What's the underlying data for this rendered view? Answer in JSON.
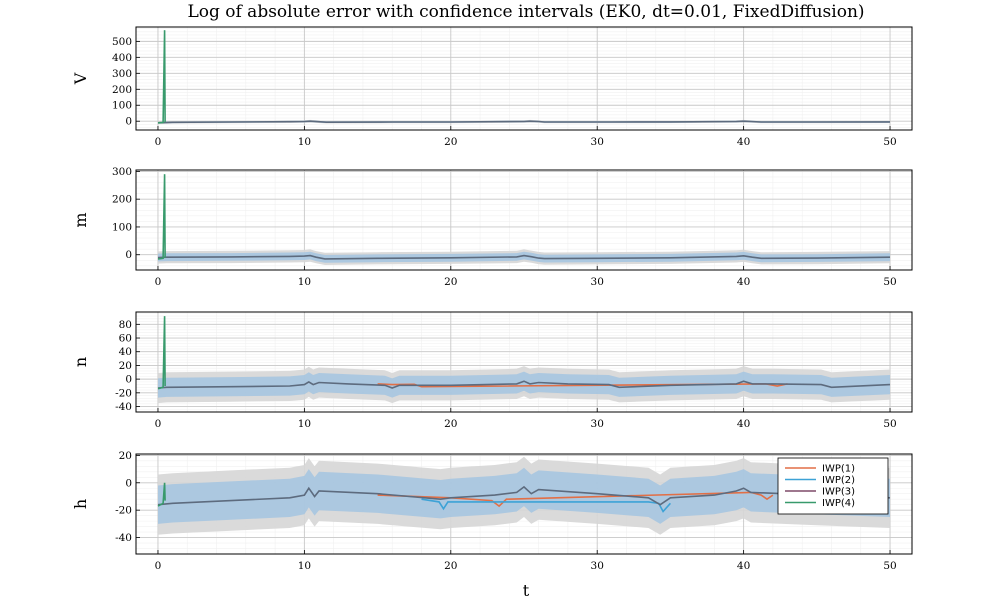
{
  "chart_data": {
    "type": "line",
    "title": "Log of absolute error with confidence intervals (EK0, dt=0.01, FixedDiffusion)",
    "xlabel": "t",
    "xlim": [
      -1.5,
      51.5
    ],
    "xticks": [
      0,
      10,
      20,
      30,
      40,
      50
    ],
    "grid": true,
    "legend": {
      "placement": "bottom-right of last panel",
      "entries": [
        "IWP(1)",
        "IWP(2)",
        "IWP(3)",
        "IWP(4)"
      ],
      "colors": [
        "#e26f46",
        "#3da2d6",
        "#7e4a68",
        "#389a6c"
      ]
    },
    "colors": {
      "band_outer": "#d6d6d6",
      "band_inner": "#9cc2e2",
      "main_line": "#5d6b7e"
    },
    "panels": [
      {
        "ylabel": "V",
        "ylim": [
          -55,
          590
        ],
        "yticks": [
          0,
          100,
          200,
          300,
          400,
          500
        ],
        "spike": {
          "t": 0.45,
          "peak": 570,
          "start": -10
        },
        "series": [
          {
            "name": "IWP(3)",
            "x": [
              0,
              1,
              5,
              9,
              10,
              10.4,
              10.7,
              11.5,
              16,
              20,
              25,
              25.4,
              26,
              26.4,
              31,
              35,
              39.5,
              40,
              40.5,
              41.2,
              45,
              50
            ],
            "y": [
              -10,
              -7,
              -5,
              -3,
              -2,
              0,
              -1,
              -6,
              -5,
              -5,
              -2,
              0,
              -2,
              -5,
              -5,
              -4,
              -2,
              0,
              -2,
              -5,
              -5,
              -4
            ]
          }
        ],
        "band_half_outer": 8,
        "band_half_inner": 5
      },
      {
        "ylabel": "m",
        "ylim": [
          -55,
          305
        ],
        "yticks": [
          0,
          100,
          200,
          300
        ],
        "spike": {
          "t": 0.45,
          "peak": 290,
          "start": -15
        },
        "series": [
          {
            "name": "IWP(3)",
            "x": [
              0,
              0.6,
              5,
              9,
              10,
              10.4,
              10.8,
              11.4,
              15,
              20,
              24.5,
              25,
              25.5,
              26,
              26.4,
              30,
              35,
              39.5,
              40,
              40.6,
              41.2,
              45,
              50
            ],
            "y": [
              -10,
              -9,
              -8,
              -6,
              -5,
              -3,
              -9,
              -15,
              -13,
              -11,
              -8,
              -3,
              -7,
              -12,
              -14,
              -13,
              -11,
              -6,
              -4,
              -9,
              -13,
              -12,
              -9
            ]
          }
        ],
        "band_half_outer": 22,
        "band_half_inner": 14
      },
      {
        "ylabel": "n",
        "ylim": [
          -48,
          98
        ],
        "yticks": [
          -40,
          -20,
          0,
          20,
          40,
          60,
          80
        ],
        "spike": {
          "t": 0.45,
          "peak": 92,
          "start": -14
        },
        "series": [
          {
            "name": "IWP(1)",
            "x": [
              15,
              16,
              17.5,
              18,
              41.5,
              42.3,
              43
            ],
            "y": [
              -7,
              -8,
              -7.5,
              -11,
              -7,
              -10,
              -7
            ]
          },
          {
            "name": "IWP(3)",
            "x": [
              0,
              0.6,
              5,
              9,
              10,
              10.3,
              10.6,
              11,
              13,
              15.5,
              16,
              16.5,
              20,
              24.5,
              25,
              25.4,
              26,
              28,
              30.8,
              31.5,
              35,
              39.5,
              40,
              40.6,
              42,
              45.3,
              46,
              50
            ],
            "y": [
              -13,
              -12,
              -11,
              -10,
              -8,
              -4,
              -8,
              -5,
              -7,
              -9,
              -13,
              -9,
              -9,
              -7,
              -3,
              -7,
              -5,
              -7,
              -8,
              -12,
              -9,
              -7,
              -3,
              -7,
              -7,
              -8,
              -12,
              -8
            ]
          }
        ],
        "band_half_outer": 22,
        "band_half_inner": 14
      },
      {
        "ylabel": "h",
        "ylim": [
          -52,
          21
        ],
        "yticks": [
          -40,
          -20,
          0,
          20
        ],
        "spike": {
          "t": 0.45,
          "peak": 0,
          "start": -17
        },
        "series": [
          {
            "name": "IWP(1)",
            "x": [
              15,
              20,
              22.8,
              23.3,
              23.8,
              40.5,
              41.2,
              41.6,
              42
            ],
            "y": [
              -9,
              -11,
              -13,
              -17,
              -12,
              -7,
              -9,
              -12,
              -9
            ]
          },
          {
            "name": "IWP(2)",
            "x": [
              18,
              19.2,
              19.5,
              19.8,
              33.5,
              34.2,
              34.5,
              35
            ],
            "y": [
              -12,
              -14,
              -19,
              -14,
              -14,
              -15,
              -21,
              -15
            ]
          },
          {
            "name": "IWP(3)",
            "x": [
              0,
              1,
              5,
              9,
              10,
              10.3,
              10.7,
              11,
              15,
              19.3,
              20,
              23,
              24.5,
              25,
              25.5,
              26,
              30,
              33.5,
              34.3,
              35,
              38,
              39.5,
              40,
              40.5,
              45,
              50
            ],
            "y": [
              -16,
              -15,
              -13,
              -11,
              -9,
              -4,
              -10,
              -6,
              -8,
              -12,
              -11,
              -9,
              -7,
              -3,
              -8,
              -5,
              -8,
              -11,
              -16,
              -11,
              -9,
              -6,
              -4,
              -7,
              -9,
              -11
            ]
          }
        ],
        "band_half_outer": 22,
        "band_half_inner": 14
      }
    ]
  }
}
